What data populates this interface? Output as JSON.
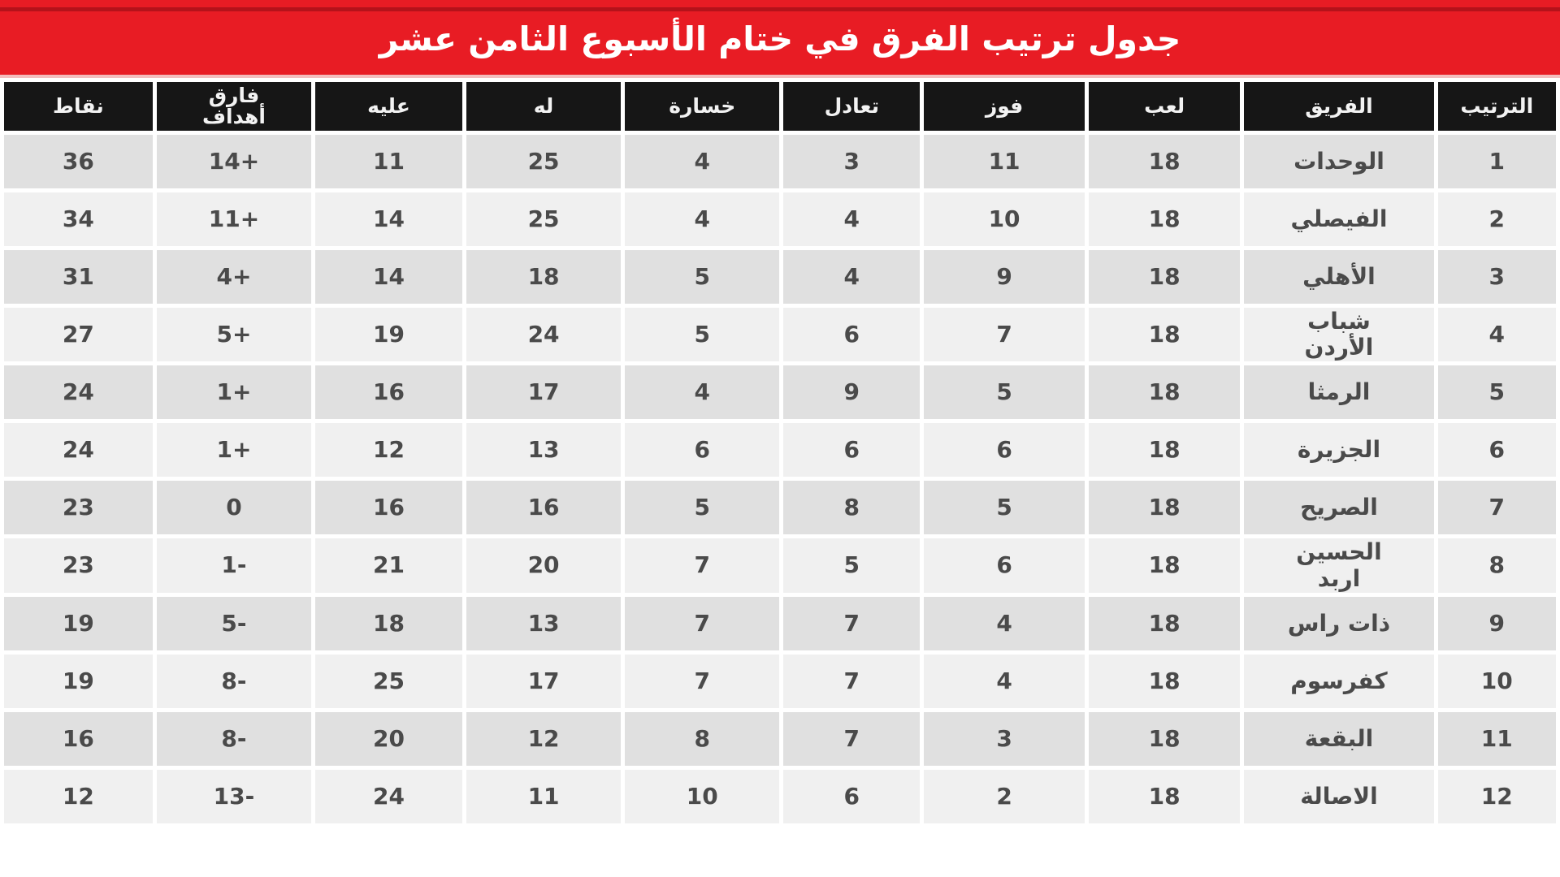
{
  "title": "جدول ترتيب الفرق في ختام الأسبوع الثامن عشر",
  "colors": {
    "banner_red": "#e81c24",
    "banner_dark_line": "#b5121a",
    "header_black": "#161616",
    "row_dark": "#e0e0e0",
    "row_light": "#f0f0f0",
    "text_dark": "#4a4a4a"
  },
  "standings": {
    "headers": {
      "rank": "الترتيب",
      "team": "الفريق",
      "played": "لعب",
      "won": "فوز",
      "drawn": "تعادل",
      "lost": "خسارة",
      "for": "له",
      "against": "عليه",
      "diff": "فارق\nأهداف",
      "points": "نقاط"
    },
    "rows": [
      {
        "rank": "1",
        "team": "الوحدات",
        "played": "18",
        "won": "11",
        "drawn": "3",
        "lost": "4",
        "for": "25",
        "against": "11",
        "diff": "+14",
        "points": "36"
      },
      {
        "rank": "2",
        "team": "الفيصلي",
        "played": "18",
        "won": "10",
        "drawn": "4",
        "lost": "4",
        "for": "25",
        "against": "14",
        "diff": "+11",
        "points": "34"
      },
      {
        "rank": "3",
        "team": "الأهلي",
        "played": "18",
        "won": "9",
        "drawn": "4",
        "lost": "5",
        "for": "18",
        "against": "14",
        "diff": "+4",
        "points": "31"
      },
      {
        "rank": "4",
        "team": "شباب\nالأردن",
        "played": "18",
        "won": "7",
        "drawn": "6",
        "lost": "5",
        "for": "24",
        "against": "19",
        "diff": "+5",
        "points": "27"
      },
      {
        "rank": "5",
        "team": "الرمثا",
        "played": "18",
        "won": "5",
        "drawn": "9",
        "lost": "4",
        "for": "17",
        "against": "16",
        "diff": "+1",
        "points": "24"
      },
      {
        "rank": "6",
        "team": "الجزيرة",
        "played": "18",
        "won": "6",
        "drawn": "6",
        "lost": "6",
        "for": "13",
        "against": "12",
        "diff": "+1",
        "points": "24"
      },
      {
        "rank": "7",
        "team": "الصريح",
        "played": "18",
        "won": "5",
        "drawn": "8",
        "lost": "5",
        "for": "16",
        "against": "16",
        "diff": "0",
        "points": "23"
      },
      {
        "rank": "8",
        "team": "الحسين\nاربد",
        "played": "18",
        "won": "6",
        "drawn": "5",
        "lost": "7",
        "for": "20",
        "against": "21",
        "diff": "-1",
        "points": "23"
      },
      {
        "rank": "9",
        "team": "ذات راس",
        "played": "18",
        "won": "4",
        "drawn": "7",
        "lost": "7",
        "for": "13",
        "against": "18",
        "diff": "-5",
        "points": "19"
      },
      {
        "rank": "10",
        "team": "كفرسوم",
        "played": "18",
        "won": "4",
        "drawn": "7",
        "lost": "7",
        "for": "17",
        "against": "25",
        "diff": "-8",
        "points": "19"
      },
      {
        "rank": "11",
        "team": "البقعة",
        "played": "18",
        "won": "3",
        "drawn": "7",
        "lost": "8",
        "for": "12",
        "against": "20",
        "diff": "-8",
        "points": "16"
      },
      {
        "rank": "12",
        "team": "الاصالة",
        "played": "18",
        "won": "2",
        "drawn": "6",
        "lost": "10",
        "for": "11",
        "against": "24",
        "diff": "-13",
        "points": "12"
      }
    ]
  },
  "chart_data": {
    "type": "table",
    "title": "جدول ترتيب الفرق في ختام الأسبوع الثامن عشر",
    "columns": [
      "الترتيب",
      "الفريق",
      "لعب",
      "فوز",
      "تعادل",
      "خسارة",
      "له",
      "عليه",
      "فارق أهداف",
      "نقاط"
    ],
    "rows": [
      [
        1,
        "الوحدات",
        18,
        11,
        3,
        4,
        25,
        11,
        14,
        36
      ],
      [
        2,
        "الفيصلي",
        18,
        10,
        4,
        4,
        25,
        14,
        11,
        34
      ],
      [
        3,
        "الأهلي",
        18,
        9,
        4,
        5,
        18,
        14,
        4,
        31
      ],
      [
        4,
        "شباب الأردن",
        18,
        7,
        6,
        5,
        24,
        19,
        5,
        27
      ],
      [
        5,
        "الرمثا",
        18,
        5,
        9,
        4,
        17,
        16,
        1,
        24
      ],
      [
        6,
        "الجزيرة",
        18,
        6,
        6,
        6,
        13,
        12,
        1,
        24
      ],
      [
        7,
        "الصريح",
        18,
        5,
        8,
        5,
        16,
        16,
        0,
        23
      ],
      [
        8,
        "الحسين اربد",
        18,
        6,
        5,
        7,
        20,
        21,
        -1,
        23
      ],
      [
        9,
        "ذات راس",
        18,
        4,
        7,
        7,
        13,
        18,
        -5,
        19
      ],
      [
        10,
        "كفرسوم",
        18,
        4,
        7,
        7,
        17,
        25,
        -8,
        19
      ],
      [
        11,
        "البقعة",
        18,
        3,
        7,
        8,
        12,
        20,
        -8,
        16
      ],
      [
        12,
        "الاصالة",
        18,
        2,
        6,
        10,
        11,
        24,
        -13,
        12
      ]
    ]
  }
}
